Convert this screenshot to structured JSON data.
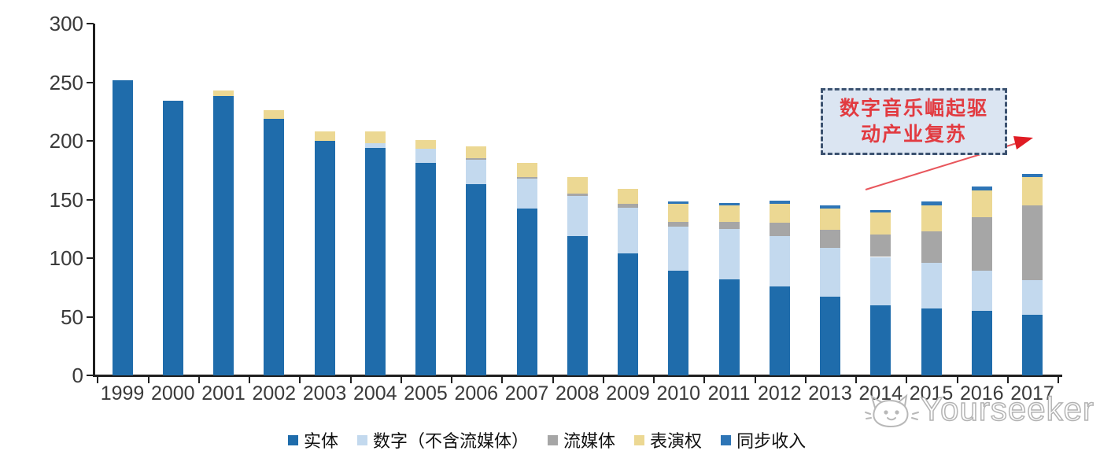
{
  "chart_data": {
    "type": "bar",
    "stacked": true,
    "title": "",
    "xlabel": "",
    "ylabel": "",
    "categories": [
      "1999",
      "2000",
      "2001",
      "2002",
      "2003",
      "2004",
      "2005",
      "2006",
      "2007",
      "2008",
      "2009",
      "2010",
      "2011",
      "2012",
      "2013",
      "2014",
      "2015",
      "2016",
      "2017"
    ],
    "series": [
      {
        "key": "physical",
        "name": "实体",
        "color": "#1f6cab",
        "values": [
          252,
          234,
          238,
          219,
          200,
          194,
          181,
          163,
          142,
          119,
          104,
          89,
          82,
          76,
          67,
          60,
          57,
          55,
          52
        ]
      },
      {
        "key": "digital-excl-streaming",
        "name": "数字（不含流媒体）",
        "color": "#c3d9ee",
        "values": [
          0,
          0,
          0,
          0,
          0,
          4,
          12,
          21,
          26,
          34,
          39,
          38,
          43,
          43,
          42,
          41,
          39,
          34,
          29
        ]
      },
      {
        "key": "streaming",
        "name": "流媒体",
        "color": "#a6a6a6",
        "values": [
          0,
          0,
          0,
          0,
          0,
          0,
          0,
          1,
          1,
          2,
          3,
          4,
          6,
          11,
          15,
          19,
          27,
          46,
          64
        ]
      },
      {
        "key": "performance-rights",
        "name": "表演权",
        "color": "#ecd893",
        "values": [
          0,
          0,
          5,
          7,
          8,
          10,
          8,
          10,
          12,
          14,
          13,
          15,
          14,
          16,
          18,
          19,
          22,
          23,
          24
        ]
      },
      {
        "key": "sync-revenue",
        "name": "同步收入",
        "color": "#2e75b6",
        "values": [
          0,
          0,
          0,
          0,
          0,
          0,
          0,
          0,
          0,
          0,
          0,
          2,
          2,
          3,
          3,
          2,
          3,
          3,
          3
        ]
      }
    ],
    "ylim": [
      0,
      300
    ],
    "yticks": [
      0,
      50,
      100,
      150,
      200,
      250,
      300
    ],
    "grid": false,
    "legend_position": "bottom"
  },
  "annotation": {
    "line1": "数字音乐崛起驱",
    "line2": "动产业复苏",
    "accent_color": "#e23b41",
    "box_fill": "#dbe5f2",
    "box_border": "#3c5270"
  },
  "watermark": {
    "label": "Yourseeker"
  }
}
